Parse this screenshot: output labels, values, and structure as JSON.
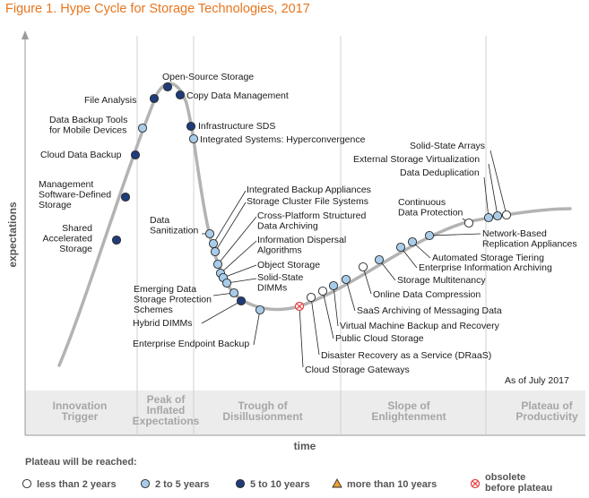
{
  "title": "Figure 1. Hype Cycle for Storage Technologies, 2017",
  "axes": {
    "y": "expectations",
    "x": "time"
  },
  "as_of": "As of July 2017",
  "phases": [
    {
      "lines": [
        "Innovation",
        "Trigger"
      ]
    },
    {
      "lines": [
        "Peak of",
        "Inflated",
        "Expectations"
      ]
    },
    {
      "lines": [
        "Trough of",
        "Disillusionment"
      ]
    },
    {
      "lines": [
        "Slope of",
        "Enlightenment"
      ]
    },
    {
      "lines": [
        "Plateau of",
        "Productivity"
      ]
    }
  ],
  "legend": {
    "title": "Plateau will be reached:",
    "items": [
      {
        "key": "lt2",
        "label": [
          "less than 2 years"
        ]
      },
      {
        "key": "2to5",
        "label": [
          "2 to 5 years"
        ]
      },
      {
        "key": "5to10",
        "label": [
          "5 to 10 years"
        ]
      },
      {
        "key": "gt10",
        "label": [
          "more than 10 years"
        ]
      },
      {
        "key": "obsolete",
        "label": [
          "obsolete",
          "before plateau"
        ]
      }
    ]
  },
  "colors": {
    "lt2": "#ffffff",
    "2to5": "#a8cce9",
    "5to10": "#1f3c7a",
    "gt10": "#f0a030",
    "obsolete": "#e03c3c",
    "curve": "#b3b3b3",
    "title": "#e8761e"
  },
  "technologies": [
    {
      "name": [
        "Shared",
        "Accelerated",
        "Storage"
      ],
      "cat": "5to10"
    },
    {
      "name": [
        "Management",
        "Software-Defined",
        "Storage"
      ],
      "cat": "5to10"
    },
    {
      "name": [
        "Cloud Data Backup"
      ],
      "cat": "5to10"
    },
    {
      "name": [
        "Data Backup Tools",
        "for Mobile Devices"
      ],
      "cat": "2to5"
    },
    {
      "name": [
        "File Analysis"
      ],
      "cat": "5to10"
    },
    {
      "name": [
        "Open-Source Storage"
      ],
      "cat": "5to10"
    },
    {
      "name": [
        "Copy Data Management"
      ],
      "cat": "5to10"
    },
    {
      "name": [
        "Infrastructure SDS"
      ],
      "cat": "5to10"
    },
    {
      "name": [
        "Integrated Systems: Hyperconvergence"
      ],
      "cat": "2to5"
    },
    {
      "name": [
        "Data",
        "Sanitization"
      ],
      "cat": "2to5"
    },
    {
      "name": [
        "Integrated Backup Appliances"
      ],
      "cat": "2to5"
    },
    {
      "name": [
        "Storage Cluster File Systems"
      ],
      "cat": "2to5"
    },
    {
      "name": [
        "Cross-Platform Structured",
        "Data Archiving"
      ],
      "cat": "2to5"
    },
    {
      "name": [
        "Information Dispersal",
        "Algorithms"
      ],
      "cat": "2to5"
    },
    {
      "name": [
        "Object Storage"
      ],
      "cat": "2to5"
    },
    {
      "name": [
        "Solid-State",
        "DIMMs"
      ],
      "cat": "2to5"
    },
    {
      "name": [
        "Emerging Data",
        "Storage Protection",
        "Schemes"
      ],
      "cat": "2to5"
    },
    {
      "name": [
        "Hybrid DIMMs"
      ],
      "cat": "5to10"
    },
    {
      "name": [
        "Enterprise Endpoint Backup"
      ],
      "cat": "2to5"
    },
    {
      "name": [
        "Cloud Storage Gateways"
      ],
      "cat": "obsolete"
    },
    {
      "name": [
        "Disaster Recovery as a Service (DRaaS)"
      ],
      "cat": "lt2"
    },
    {
      "name": [
        "Public Cloud Storage"
      ],
      "cat": "lt2"
    },
    {
      "name": [
        "Virtual Machine Backup and Recovery"
      ],
      "cat": "2to5"
    },
    {
      "name": [
        "SaaS Archiving of Messaging Data"
      ],
      "cat": "2to5"
    },
    {
      "name": [
        "Online Data Compression"
      ],
      "cat": "lt2"
    },
    {
      "name": [
        "Storage Multitenancy"
      ],
      "cat": "2to5"
    },
    {
      "name": [
        "Enterprise Information Archiving"
      ],
      "cat": "2to5"
    },
    {
      "name": [
        "Automated Storage Tiering"
      ],
      "cat": "2to5"
    },
    {
      "name": [
        "Network-Based",
        "Replication Appliances"
      ],
      "cat": "2to5"
    },
    {
      "name": [
        "Continuous",
        "Data Protection"
      ],
      "cat": "lt2"
    },
    {
      "name": [
        "Data Deduplication"
      ],
      "cat": "2to5"
    },
    {
      "name": [
        "External Storage Virtualization"
      ],
      "cat": "2to5"
    },
    {
      "name": [
        "Solid-State Arrays"
      ],
      "cat": "lt2"
    }
  ]
}
